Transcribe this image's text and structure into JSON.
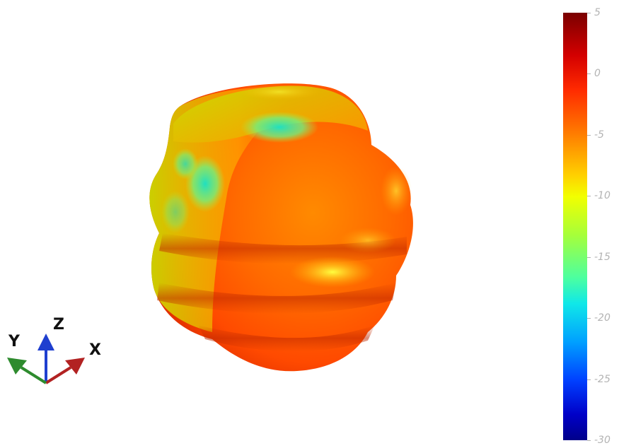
{
  "axes_triad": {
    "x_label": "X",
    "y_label": "Y",
    "z_label": "Z",
    "x_color": "#b22222",
    "y_color": "#2e8b2e",
    "z_color": "#1f3fcf"
  },
  "colorbar": {
    "max": 5,
    "min": -30,
    "ticks": [
      "5",
      "0",
      "-5",
      "-10",
      "-15",
      "-20",
      "-25",
      "-30"
    ]
  },
  "pattern": {
    "description_colors": [
      "#ff6a00",
      "#ffd000",
      "#a6ff3a",
      "#10e8e8"
    ]
  }
}
